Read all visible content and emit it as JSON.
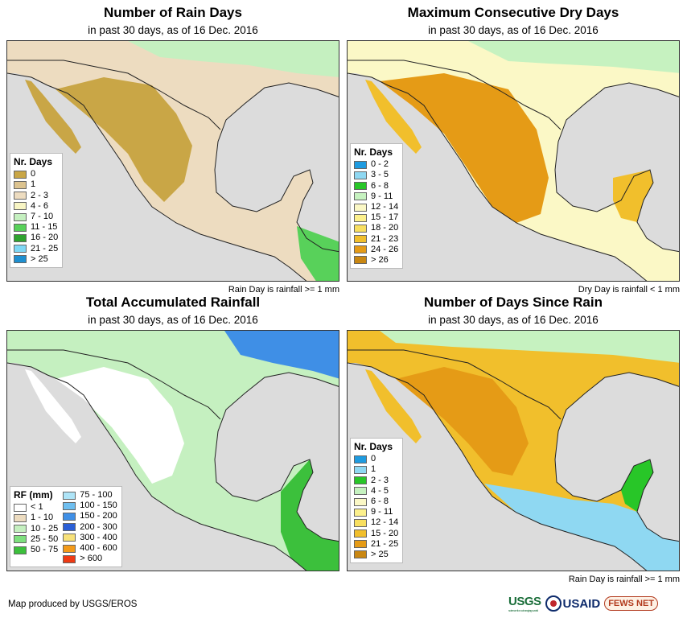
{
  "panels": [
    {
      "title": "Number of Rain Days",
      "subtitle": "in past 30 days, as of 16 Dec. 2016",
      "note": "Rain Day is rainfall >= 1 mm",
      "legend_title": "Nr. Days",
      "legend": [
        {
          "label": "0",
          "color": "#c9a646"
        },
        {
          "label": "1",
          "color": "#dcc38f"
        },
        {
          "label": "2 - 3",
          "color": "#eddcc0"
        },
        {
          "label": "4 - 6",
          "color": "#f8f5c4"
        },
        {
          "label": "7 - 10",
          "color": "#c5f0c0"
        },
        {
          "label": "11 - 15",
          "color": "#58d15a"
        },
        {
          "label": "16 - 20",
          "color": "#2fa32f"
        },
        {
          "label": "21 - 25",
          "color": "#7fd8f5"
        },
        {
          "label": "> 25",
          "color": "#1e8fd0"
        }
      ]
    },
    {
      "title": "Maximum Consecutive Dry Days",
      "subtitle": "in past 30 days, as of 16 Dec. 2016",
      "note": "Dry Day is rainfall < 1 mm",
      "legend_title": "Nr. Days",
      "legend": [
        {
          "label": "0 - 2",
          "color": "#1e9be0"
        },
        {
          "label": "3 - 5",
          "color": "#8fd8f2"
        },
        {
          "label": "6 - 8",
          "color": "#28c628"
        },
        {
          "label": "9 - 11",
          "color": "#c6f2c0"
        },
        {
          "label": "12 - 14",
          "color": "#fbf8c6"
        },
        {
          "label": "15 - 17",
          "color": "#fcf08c"
        },
        {
          "label": "18 - 20",
          "color": "#f8df60"
        },
        {
          "label": "21 - 23",
          "color": "#f1bf2c"
        },
        {
          "label": "24 - 26",
          "color": "#e59b16"
        },
        {
          "label": "> 26",
          "color": "#c98712"
        }
      ]
    },
    {
      "title": "Total Accumulated Rainfall",
      "subtitle": "in past 30 days, as of 16 Dec. 2016",
      "note": "",
      "legend_title": "RF (mm)",
      "legend": [
        {
          "label": "< 1",
          "color": "#ffffff"
        },
        {
          "label": "1 - 10",
          "color": "#eddcc0"
        },
        {
          "label": "10 - 25",
          "color": "#c5f0c0"
        },
        {
          "label": "25 - 50",
          "color": "#7ee07e"
        },
        {
          "label": "50 - 75",
          "color": "#3cc03c"
        },
        {
          "label": "75 - 100",
          "color": "#aee4f7"
        },
        {
          "label": "100 - 150",
          "color": "#6fbff0"
        },
        {
          "label": "150 - 200",
          "color": "#3f8fe6"
        },
        {
          "label": "200 - 300",
          "color": "#2a5fd6"
        },
        {
          "label": "300 - 400",
          "color": "#f8e27a"
        },
        {
          "label": "400 - 600",
          "color": "#f39a1a"
        },
        {
          "label": "> 600",
          "color": "#ee3a14"
        }
      ]
    },
    {
      "title": "Number of Days Since Rain",
      "subtitle": "in past 30 days, as of 16 Dec. 2016",
      "note": "Rain Day is rainfall >= 1 mm",
      "legend_title": "Nr. Days",
      "legend": [
        {
          "label": "0",
          "color": "#1e9be0"
        },
        {
          "label": "1",
          "color": "#8fd8f2"
        },
        {
          "label": "2 - 3",
          "color": "#28c628"
        },
        {
          "label": "4 - 5",
          "color": "#c6f2c0"
        },
        {
          "label": "6 - 8",
          "color": "#fbf8c6"
        },
        {
          "label": "9 - 11",
          "color": "#fcf08c"
        },
        {
          "label": "12 - 14",
          "color": "#f8df60"
        },
        {
          "label": "15 - 20",
          "color": "#f1bf2c"
        },
        {
          "label": "21 - 25",
          "color": "#e59b16"
        },
        {
          "label": "> 25",
          "color": "#c98712"
        }
      ]
    }
  ],
  "footer": {
    "credit": "Map produced by USGS/EROS",
    "logo_usgs": "USGS",
    "logo_usgs_tagline": "science for a changing world",
    "logo_usaid": "USAID",
    "logo_fews": "FEWS NET"
  },
  "map_colors": {
    "ocean": "#dcdcdc",
    "border": "#222222"
  }
}
